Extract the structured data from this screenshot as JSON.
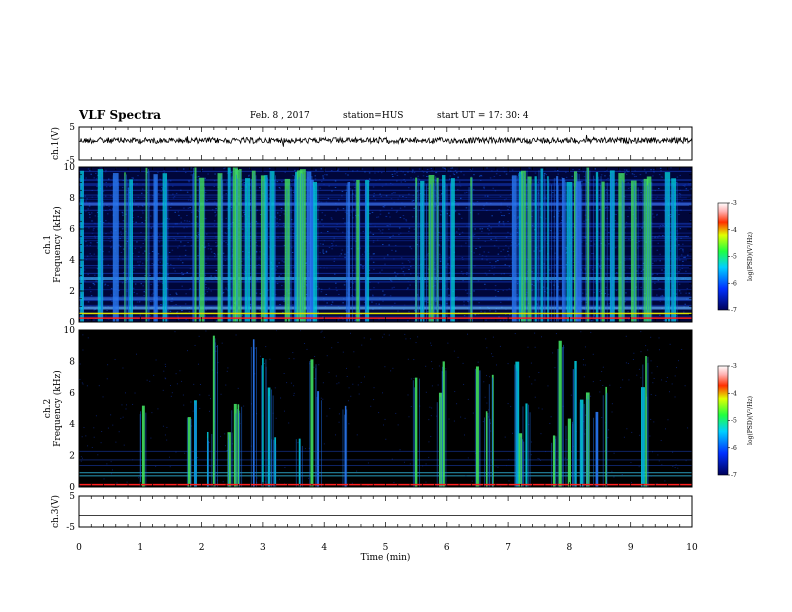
{
  "header": {
    "title": "VLF Spectra",
    "date": "Feb. 8 , 2017",
    "station": "station=HUS",
    "start": "start UT = 17: 30: 4"
  },
  "chart_data": [
    {
      "type": "line",
      "panel": "ch1-waveform",
      "ylabel": "ch.1(V)",
      "ylim": [
        -5,
        5
      ],
      "yticks": [
        "5",
        "-5"
      ],
      "xlim": [
        0,
        10
      ],
      "series": [
        {
          "values_description": "noisy trace around 0 V",
          "mean": 0
        }
      ]
    },
    {
      "type": "heatmap",
      "panel": "ch1-spectrogram",
      "ylabel": "ch.1\nFrequency (kHz)",
      "ylim": [
        0,
        10
      ],
      "yticks": [
        "0",
        "2",
        "4",
        "6",
        "8",
        "10"
      ],
      "xlim": [
        0,
        10
      ],
      "colorbar": {
        "label": "log(PSD)(V²/Hz)",
        "range": [
          -7,
          -3
        ],
        "ticks": [
          "-3",
          "-4",
          "-5",
          "-6",
          "-7"
        ]
      },
      "bursts_min": [
        0.05,
        0.35,
        0.6,
        0.75,
        0.85,
        1.1,
        1.25,
        1.4,
        1.9,
        2.0,
        2.3,
        2.45,
        2.55,
        2.6,
        2.75,
        2.85,
        3.0,
        3.05,
        3.15,
        3.4,
        3.55,
        3.6,
        3.65,
        3.75,
        3.8,
        3.85,
        4.4,
        4.55,
        4.7,
        5.5,
        5.6,
        5.75,
        5.85,
        5.95,
        6.1,
        6.4,
        7.1,
        7.2,
        7.25,
        7.35,
        7.45,
        7.55,
        7.65,
        7.8,
        7.9,
        8.0,
        8.1,
        8.15,
        8.3,
        8.45,
        8.55,
        8.7,
        8.85,
        9.05,
        9.25,
        9.3,
        9.6,
        9.7
      ]
    },
    {
      "type": "heatmap",
      "panel": "ch2-spectrogram",
      "ylabel": "ch.2\nFrequency (kHz)",
      "ylim": [
        0,
        10
      ],
      "yticks": [
        "0",
        "2",
        "4",
        "6",
        "8",
        "10"
      ],
      "xlim": [
        0,
        10
      ],
      "colorbar": {
        "label": "log(PSD)(V²/Hz)",
        "range": [
          -7,
          -3
        ],
        "ticks": [
          "-3",
          "-4",
          "-5",
          "-6",
          "-7"
        ]
      },
      "bursts_min": [
        1.05,
        1.8,
        1.9,
        2.1,
        2.2,
        2.45,
        2.55,
        2.6,
        2.85,
        3.0,
        3.1,
        3.2,
        3.6,
        3.8,
        3.9,
        4.35,
        5.5,
        5.9,
        5.95,
        6.5,
        6.65,
        6.75,
        7.15,
        7.2,
        7.3,
        7.75,
        7.85,
        8.0,
        8.1,
        8.2,
        8.3,
        8.45,
        8.6,
        9.2,
        9.25
      ]
    },
    {
      "type": "line",
      "panel": "ch3-waveform",
      "ylabel": "ch.3(V)",
      "ylim": [
        -5,
        5
      ],
      "yticks": [
        "5",
        "-5"
      ],
      "xlim": [
        0,
        10
      ],
      "xlabel": "Time (min)",
      "xticks": [
        "0",
        "1",
        "2",
        "3",
        "4",
        "5",
        "6",
        "7",
        "8",
        "9",
        "10"
      ],
      "series": [
        {
          "values_description": "flat trace",
          "mean": 0
        }
      ]
    }
  ],
  "colors": {
    "background_dark": "#000010",
    "noise_blue": "#0a2a9a",
    "burst_cyan": "#00c8d8",
    "burst_green": "#40e060",
    "line_red": "#ff2020",
    "line_yellow": "#e0e000"
  }
}
